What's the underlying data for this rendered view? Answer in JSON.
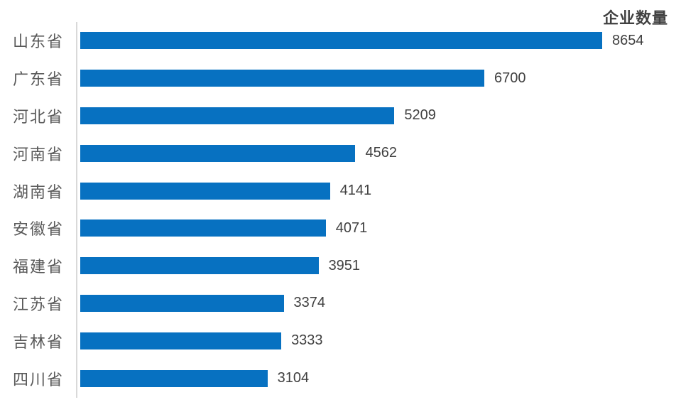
{
  "chart_data": {
    "type": "bar",
    "orientation": "horizontal",
    "title": "企业数量",
    "categories": [
      "山东省",
      "广东省",
      "河北省",
      "河南省",
      "湖南省",
      "安徽省",
      "福建省",
      "江苏省",
      "吉林省",
      "四川省"
    ],
    "values": [
      8654,
      6700,
      5209,
      4562,
      4141,
      4071,
      3951,
      3374,
      3333,
      3104
    ],
    "xlim": [
      0,
      8654
    ],
    "grid": false,
    "legend": false,
    "value_labels_shown": true,
    "colors": {
      "bar": "#0771c1",
      "category_label": "#595959",
      "value_label": "#404040",
      "title": "#404040",
      "axis_line": "#d9d9d9",
      "background": "#ffffff"
    }
  }
}
